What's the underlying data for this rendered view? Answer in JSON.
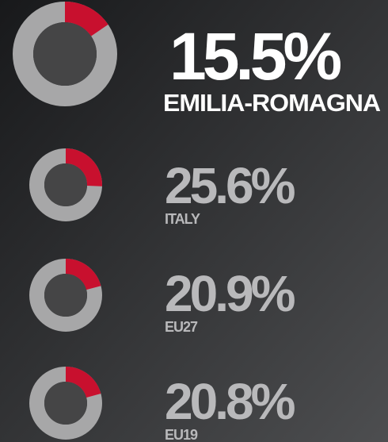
{
  "chart_data": [
    {
      "type": "donut",
      "title": "EMILIA-ROMAGNA",
      "values": [
        15.5
      ],
      "value_labels": [
        "15.5%"
      ],
      "color": "#c8102e",
      "ylim": [
        0,
        100
      ]
    },
    {
      "type": "donut",
      "title": "ITALY",
      "values": [
        25.6
      ],
      "value_labels": [
        "25.6%"
      ],
      "color": "#c8102e",
      "ylim": [
        0,
        100
      ]
    },
    {
      "type": "donut",
      "title": "EU27",
      "values": [
        20.9
      ],
      "value_labels": [
        "20.9%"
      ],
      "color": "#c8102e",
      "ylim": [
        0,
        100
      ]
    },
    {
      "type": "donut",
      "title": "EU19",
      "values": [
        20.8
      ],
      "value_labels": [
        "20.8%"
      ],
      "color": "#c8102e",
      "ylim": [
        0,
        100
      ]
    }
  ]
}
